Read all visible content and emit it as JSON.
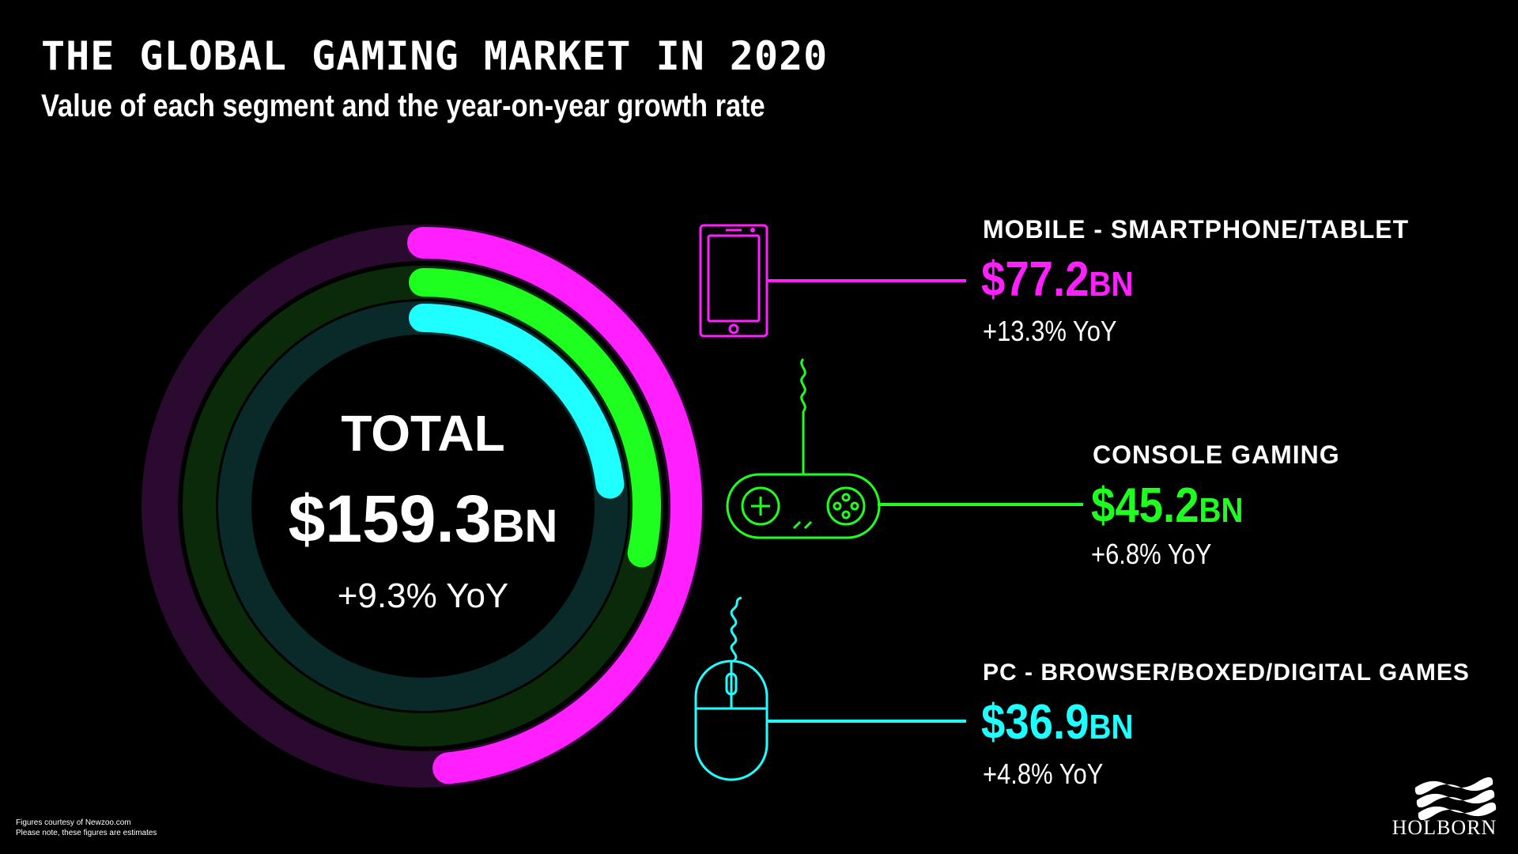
{
  "header": {
    "title": "The Global Gaming Market in 2020",
    "subtitle": "Value of each segment and the year-on-year growth rate"
  },
  "total": {
    "label": "TOTAL",
    "value": "$159.3",
    "unit": "BN",
    "growth": "+9.3% YoY"
  },
  "chart_data": {
    "type": "pie",
    "title": "The Global Gaming Market in 2020",
    "subtitle": "Value of each segment and the year-on-year growth rate",
    "categories": [
      "MOBILE - SMARTPHONE/TABLET",
      "CONSOLE GAMING",
      "PC - BROWSER/BOXED/DIGITAL GAMES"
    ],
    "values": [
      77.2,
      45.2,
      36.9
    ],
    "growth_yoy_percent": [
      13.3,
      6.8,
      4.8
    ],
    "total": 159.3,
    "total_growth_yoy_percent": 9.3,
    "unit": "BN",
    "colors": [
      "#ff1fff",
      "#1fff1f",
      "#1fffff"
    ],
    "track_colors": [
      "#2a0a2e",
      "#0a2a0a",
      "#0a2a2a"
    ],
    "legend_placement": "right"
  },
  "segments": [
    {
      "label": "MOBILE - SMARTPHONE/TABLET",
      "value": "$77.2",
      "unit": "BN",
      "growth": "+13.3% YoY",
      "icon": "smartphone-icon",
      "color": "#ff1fff"
    },
    {
      "label": "CONSOLE  GAMING",
      "value": "$45.2",
      "unit": "BN",
      "growth": "+6.8% YoY",
      "icon": "gamepad-icon",
      "color": "#1fff1f"
    },
    {
      "label": "PC - BROWSER/BOXED/DIGITAL GAMES",
      "value": "$36.9",
      "unit": "BN",
      "growth": "+4.8% YoY",
      "icon": "mouse-icon",
      "color": "#1fffff"
    }
  ],
  "footnote": {
    "line1": "Figures courtesy of Newzoo.com",
    "line2": "Please note, these figures are estimates"
  },
  "brand": {
    "name": "HOLBORN",
    "icon": "waves-logo-icon"
  }
}
